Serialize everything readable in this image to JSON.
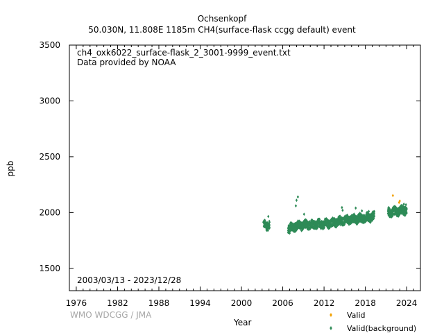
{
  "header": {
    "station": "Ochsenkopf",
    "subtitle": "50.030N, 11.808E 1185m    CH4(surface-flask ccgg default) event"
  },
  "annotations": {
    "filename": "ch4_oxk6022_surface-flask_2_3001-9999_event.txt",
    "provider": "Data provided by NOAA",
    "date_range": "2003/03/13 - 2023/12/28"
  },
  "credit": "WMO WDCGG / JMA",
  "colors": {
    "valid": "#f2a000",
    "background": "#2e8b57"
  },
  "chart_data": {
    "type": "scatter",
    "title": "Ochsenkopf",
    "xlabel": "Year",
    "ylabel": "ppb",
    "xlim": [
      1975,
      2026
    ],
    "ylim": [
      1300,
      3500
    ],
    "xticks": [
      1976,
      1982,
      1988,
      1994,
      2000,
      2006,
      2012,
      2018,
      2024
    ],
    "yticks": [
      1500,
      2000,
      2500,
      3000,
      3500
    ],
    "grid": false,
    "legend_position": "bottom-right",
    "series": [
      {
        "name": "Valid",
        "marker": "diamond",
        "points": [
          [
            2022.0,
            2152
          ],
          [
            2023.0,
            2103
          ],
          [
            2022.9,
            2090
          ]
        ]
      },
      {
        "name": "Valid(background)",
        "marker": "diamond",
        "trend": [
          [
            2003.2,
            1890
          ],
          [
            2004.0,
            1885
          ],
          [
            2007.0,
            1860
          ],
          [
            2008.0,
            1880
          ],
          [
            2009.0,
            1888
          ],
          [
            2010.0,
            1892
          ],
          [
            2011.0,
            1895
          ],
          [
            2012.0,
            1898
          ],
          [
            2013.0,
            1905
          ],
          [
            2014.0,
            1915
          ],
          [
            2015.0,
            1930
          ],
          [
            2016.0,
            1940
          ],
          [
            2017.0,
            1945
          ],
          [
            2018.0,
            1952
          ],
          [
            2019.0,
            1962
          ],
          [
            2019.3,
            1965
          ],
          [
            2021.3,
            1998
          ],
          [
            2022.0,
            2005
          ],
          [
            2023.0,
            2015
          ],
          [
            2024.0,
            2025
          ]
        ],
        "segments": [
          [
            2003.2,
            2004.1
          ],
          [
            2006.8,
            2019.3
          ],
          [
            2021.3,
            2024.0
          ]
        ],
        "scatter_ppb": 45,
        "peaks": [
          [
            2003.9,
            1965
          ],
          [
            2008.2,
            2140
          ],
          [
            2008.0,
            2110
          ],
          [
            2007.9,
            2060
          ],
          [
            2009.1,
            1985
          ],
          [
            2014.6,
            2045
          ],
          [
            2014.7,
            2020
          ],
          [
            2016.6,
            2040
          ],
          [
            2017.5,
            2015
          ],
          [
            2018.5,
            2010
          ],
          [
            2021.4,
            2045
          ],
          [
            2023.6,
            2075
          ],
          [
            2023.9,
            2070
          ],
          [
            2007.0,
            1815
          ]
        ]
      }
    ]
  }
}
